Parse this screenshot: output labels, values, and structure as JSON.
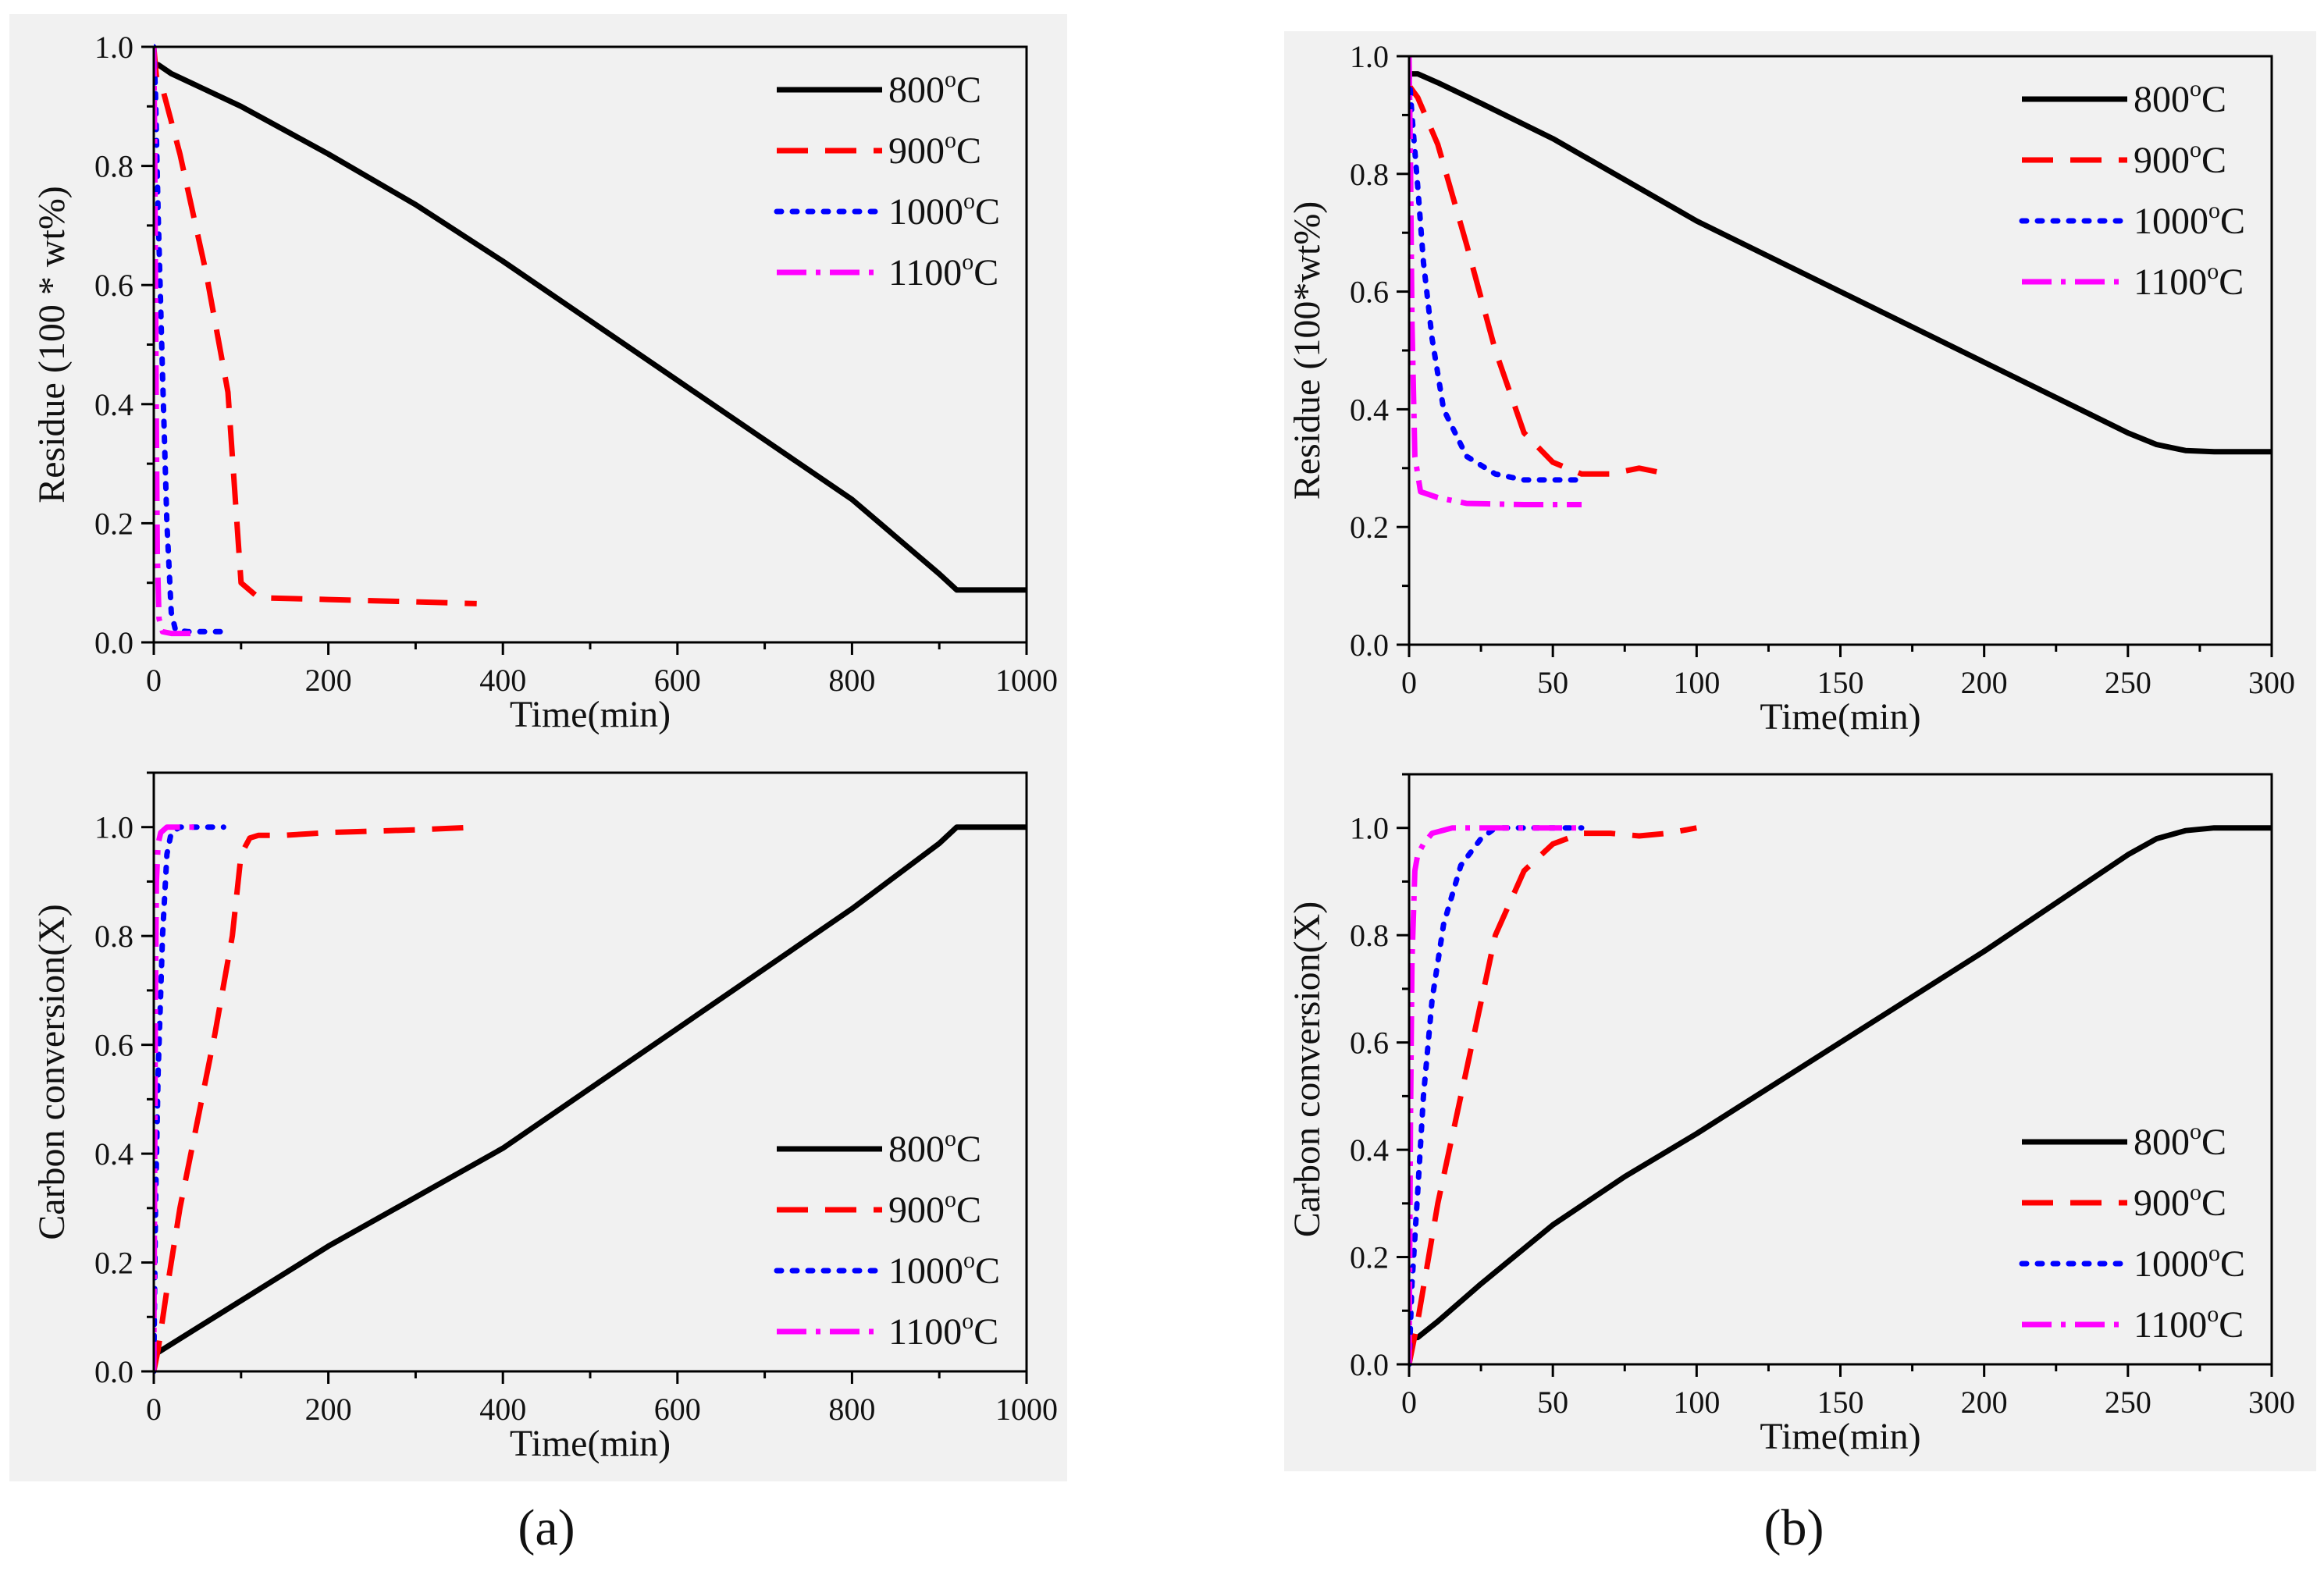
{
  "colors": {
    "s800": "#000000",
    "s900": "#ff0000",
    "s1000": "#0000ff",
    "s1100": "#ff00ff",
    "background": "#f1f1f1"
  },
  "captions": {
    "a": "(a)",
    "b": "(b)"
  },
  "chart_data": [
    {
      "id": "a-top",
      "type": "line",
      "xlabel": "Time(min)",
      "ylabel": "Residue (100 * wt%)",
      "xlim": [
        0,
        1000
      ],
      "ylim": [
        0,
        1.0
      ],
      "xticks": [
        0,
        200,
        400,
        600,
        800,
        1000
      ],
      "xtick_labels": [
        "0",
        "200",
        "400",
        "600",
        "800",
        "1000"
      ],
      "yticks": [
        0,
        0.2,
        0.4,
        0.6,
        0.8,
        1.0
      ],
      "ytick_labels": [
        "0.0",
        "0.2",
        "0.4",
        "0.6",
        "0.8",
        "1.0"
      ],
      "legend": "top-right",
      "series": [
        {
          "name": "800°C",
          "temp": "800",
          "style": "solid",
          "x": [
            0,
            5,
            20,
            100,
            200,
            300,
            400,
            500,
            600,
            700,
            800,
            900,
            920,
            1000
          ],
          "y": [
            0.97,
            0.97,
            0.955,
            0.9,
            0.82,
            0.735,
            0.64,
            0.54,
            0.44,
            0.34,
            0.24,
            0.115,
            0.088,
            0.088
          ]
        },
        {
          "name": "900°C",
          "temp": "900",
          "style": "dashed",
          "x": [
            0,
            3,
            10,
            30,
            60,
            85,
            100,
            120,
            200,
            300,
            370
          ],
          "y": [
            1.0,
            0.95,
            0.93,
            0.82,
            0.62,
            0.42,
            0.1,
            0.075,
            0.072,
            0.068,
            0.065
          ]
        },
        {
          "name": "1000°C",
          "temp": "1000",
          "style": "dotted",
          "x": [
            0,
            2,
            5,
            10,
            15,
            20,
            25,
            40,
            60,
            80
          ],
          "y": [
            1.0,
            0.92,
            0.72,
            0.45,
            0.2,
            0.05,
            0.02,
            0.018,
            0.018,
            0.018
          ]
        },
        {
          "name": "1100°C",
          "temp": "1100",
          "style": "dashdot",
          "x": [
            0,
            1,
            2,
            3,
            4,
            6,
            10,
            20,
            40,
            50
          ],
          "y": [
            1.0,
            0.85,
            0.6,
            0.35,
            0.15,
            0.04,
            0.018,
            0.015,
            0.015,
            0.015
          ]
        }
      ],
      "legend_labels": [
        {
          "temp": "800",
          "suffix": "C"
        },
        {
          "temp": "900",
          "suffix": "C"
        },
        {
          "temp": "1000",
          "suffix": "C"
        },
        {
          "temp": "1100",
          "suffix": "C"
        }
      ]
    },
    {
      "id": "a-bottom",
      "type": "line",
      "xlabel": "Time(min)",
      "ylabel": "Carbon conversion(X)",
      "xlim": [
        0,
        1000
      ],
      "ylim": [
        0,
        1.1
      ],
      "xticks": [
        0,
        200,
        400,
        600,
        800,
        1000
      ],
      "xtick_labels": [
        "0",
        "200",
        "400",
        "600",
        "800",
        "1000"
      ],
      "yticks": [
        0,
        0.2,
        0.4,
        0.6,
        0.8,
        1.0
      ],
      "ytick_labels": [
        "0.0",
        "0.2",
        "0.4",
        "0.6",
        "0.8",
        "1.0"
      ],
      "legend": "bottom-right",
      "series": [
        {
          "name": "800°C",
          "temp": "800",
          "style": "solid",
          "x": [
            0,
            5,
            100,
            200,
            300,
            400,
            500,
            600,
            700,
            800,
            900,
            920,
            1000
          ],
          "y": [
            0.03,
            0.035,
            0.13,
            0.23,
            0.32,
            0.41,
            0.52,
            0.63,
            0.74,
            0.85,
            0.97,
            1.0,
            1.0
          ]
        },
        {
          "name": "900°C",
          "temp": "900",
          "style": "dashed",
          "x": [
            0,
            5,
            15,
            30,
            50,
            70,
            90,
            100,
            110,
            120,
            150,
            200,
            300,
            370
          ],
          "y": [
            0.0,
            0.04,
            0.15,
            0.3,
            0.46,
            0.62,
            0.8,
            0.95,
            0.98,
            0.985,
            0.985,
            0.99,
            0.995,
            1.0
          ]
        },
        {
          "name": "1000°C",
          "temp": "1000",
          "style": "dotted",
          "x": [
            0,
            2,
            5,
            10,
            15,
            20,
            30,
            50,
            80
          ],
          "y": [
            0.0,
            0.3,
            0.55,
            0.8,
            0.95,
            0.99,
            1.0,
            1.0,
            1.0
          ]
        },
        {
          "name": "1100°C",
          "temp": "1100",
          "style": "dashdot",
          "x": [
            0,
            1,
            2,
            3,
            5,
            8,
            15,
            30,
            50
          ],
          "y": [
            0.0,
            0.35,
            0.7,
            0.9,
            0.97,
            0.99,
            1.0,
            1.0,
            1.0
          ]
        }
      ],
      "legend_labels": [
        {
          "temp": "800",
          "suffix": "C"
        },
        {
          "temp": "900",
          "suffix": "C"
        },
        {
          "temp": "1000",
          "suffix": "C"
        },
        {
          "temp": "1100",
          "suffix": "C"
        }
      ]
    },
    {
      "id": "b-top",
      "type": "line",
      "xlabel": "Time(min)",
      "ylabel": "Residue (100*wt%)",
      "xlim": [
        0,
        300
      ],
      "ylim": [
        0,
        1.0
      ],
      "xticks": [
        0,
        50,
        100,
        150,
        200,
        250,
        300
      ],
      "xtick_labels": [
        "0",
        "50",
        "100",
        "150",
        "200",
        "250",
        "300"
      ],
      "yticks": [
        0,
        0.2,
        0.4,
        0.6,
        0.8,
        1.0
      ],
      "ytick_labels": [
        "0.0",
        "0.2",
        "0.4",
        "0.6",
        "0.8",
        "1.0"
      ],
      "legend": "top-right",
      "series": [
        {
          "name": "800°C",
          "temp": "800",
          "style": "solid",
          "x": [
            0,
            3,
            10,
            25,
            50,
            75,
            100,
            150,
            200,
            250,
            260,
            270,
            280,
            300
          ],
          "y": [
            0.97,
            0.97,
            0.955,
            0.92,
            0.86,
            0.79,
            0.72,
            0.6,
            0.48,
            0.36,
            0.34,
            0.33,
            0.328,
            0.328
          ]
        },
        {
          "name": "900°C",
          "temp": "900",
          "style": "dashed",
          "x": [
            0,
            3,
            10,
            20,
            30,
            40,
            50,
            60,
            70,
            80,
            90
          ],
          "y": [
            0.95,
            0.93,
            0.85,
            0.68,
            0.5,
            0.36,
            0.31,
            0.29,
            0.29,
            0.3,
            0.29
          ]
        },
        {
          "name": "1000°C",
          "temp": "1000",
          "style": "dotted",
          "x": [
            0,
            1,
            3,
            5,
            8,
            12,
            20,
            30,
            40,
            50,
            60
          ],
          "y": [
            0.97,
            0.9,
            0.78,
            0.65,
            0.52,
            0.4,
            0.32,
            0.29,
            0.28,
            0.28,
            0.28
          ]
        },
        {
          "name": "1100°C",
          "temp": "1100",
          "style": "dashdot",
          "x": [
            0,
            0.5,
            1,
            2,
            4,
            10,
            20,
            40,
            60
          ],
          "y": [
            1.0,
            0.82,
            0.55,
            0.32,
            0.26,
            0.25,
            0.24,
            0.238,
            0.238
          ]
        }
      ],
      "legend_labels": [
        {
          "temp": "800",
          "suffix": "C"
        },
        {
          "temp": "900",
          "suffix": "C"
        },
        {
          "temp": "1000",
          "suffix": "C"
        },
        {
          "temp": "1100",
          "suffix": "C"
        }
      ]
    },
    {
      "id": "b-bottom",
      "type": "line",
      "xlabel": "Time(min)",
      "ylabel": "Carbon conversion(X)",
      "xlim": [
        0,
        300
      ],
      "ylim": [
        0,
        1.1
      ],
      "xticks": [
        0,
        50,
        100,
        150,
        200,
        250,
        300
      ],
      "xtick_labels": [
        "0",
        "50",
        "100",
        "150",
        "200",
        "250",
        "300"
      ],
      "yticks": [
        0,
        0.2,
        0.4,
        0.6,
        0.8,
        1.0
      ],
      "ytick_labels": [
        "0.0",
        "0.2",
        "0.4",
        "0.6",
        "0.8",
        "1.0"
      ],
      "legend": "bottom-right",
      "series": [
        {
          "name": "800°C",
          "temp": "800",
          "style": "solid",
          "x": [
            0,
            3,
            10,
            25,
            50,
            75,
            100,
            150,
            200,
            250,
            260,
            270,
            280,
            300
          ],
          "y": [
            0.05,
            0.05,
            0.08,
            0.15,
            0.26,
            0.35,
            0.43,
            0.6,
            0.77,
            0.95,
            0.98,
            0.995,
            1.0,
            1.0
          ]
        },
        {
          "name": "900°C",
          "temp": "900",
          "style": "dashed",
          "x": [
            0,
            3,
            10,
            20,
            30,
            40,
            50,
            60,
            70,
            80,
            90,
            100
          ],
          "y": [
            0.0,
            0.08,
            0.3,
            0.55,
            0.8,
            0.92,
            0.97,
            0.99,
            0.99,
            0.985,
            0.99,
            1.0
          ]
        },
        {
          "name": "1000°C",
          "temp": "1000",
          "style": "dotted",
          "x": [
            0,
            1,
            3,
            5,
            8,
            12,
            18,
            25,
            30,
            40,
            60
          ],
          "y": [
            0.0,
            0.15,
            0.32,
            0.5,
            0.68,
            0.82,
            0.93,
            0.98,
            1.0,
            1.0,
            1.0
          ]
        },
        {
          "name": "1100°C",
          "temp": "1100",
          "style": "dashdot",
          "x": [
            0,
            0.5,
            1,
            2,
            3,
            5,
            8,
            15,
            30,
            60
          ],
          "y": [
            0.0,
            0.45,
            0.75,
            0.92,
            0.95,
            0.97,
            0.99,
            1.0,
            1.0,
            1.0
          ]
        }
      ],
      "legend_labels": [
        {
          "temp": "800",
          "suffix": "C"
        },
        {
          "temp": "900",
          "suffix": "C"
        },
        {
          "temp": "1000",
          "suffix": "C"
        },
        {
          "temp": "1100",
          "suffix": "C"
        }
      ]
    }
  ]
}
